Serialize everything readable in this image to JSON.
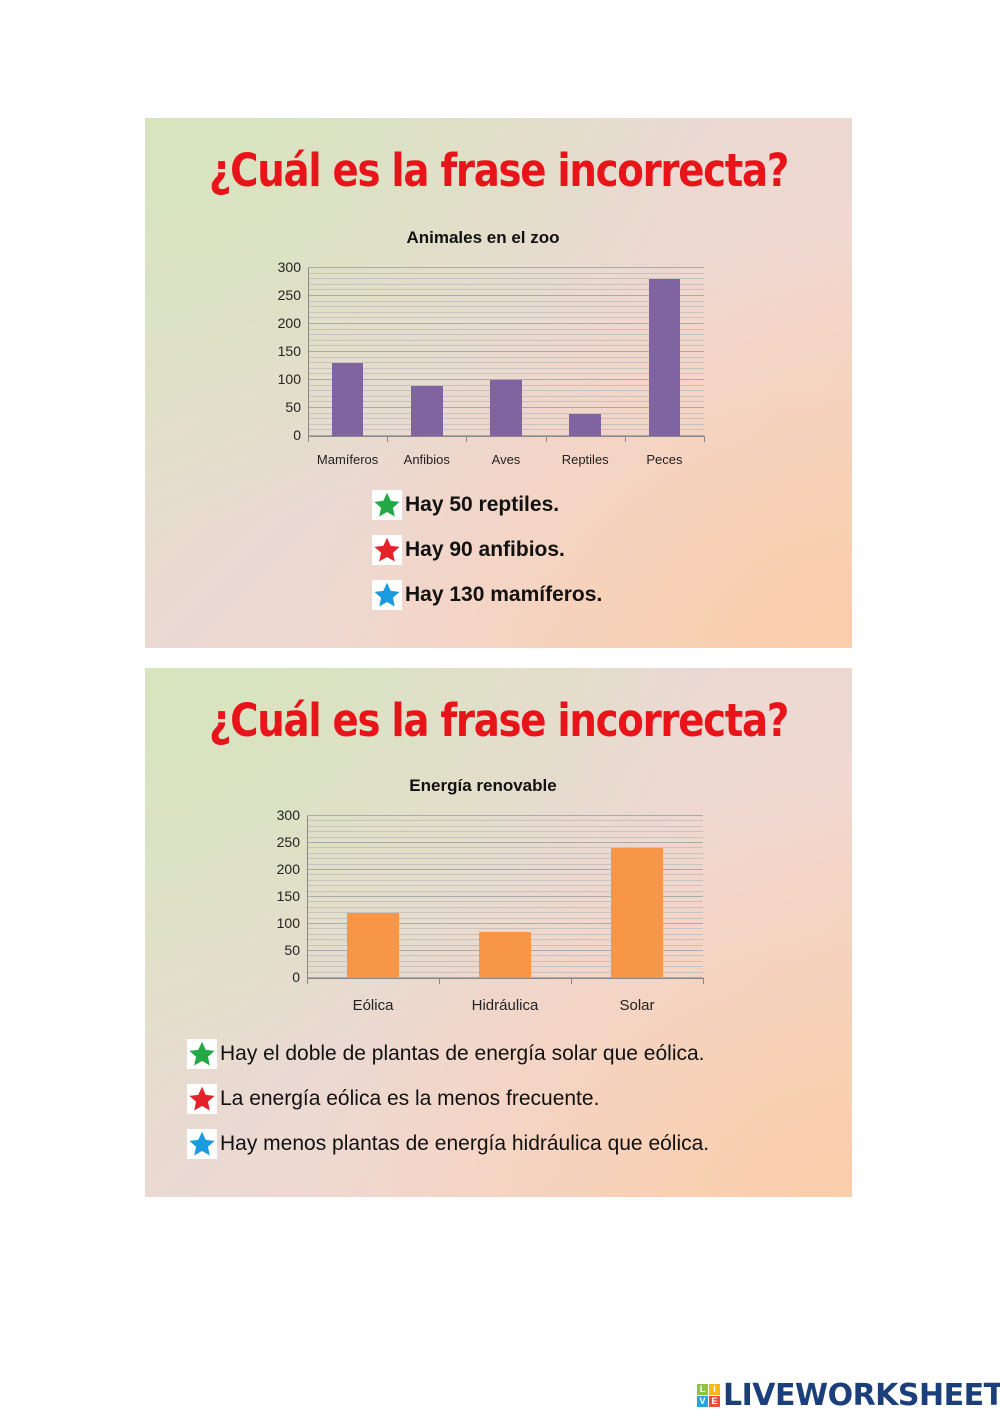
{
  "slides": [
    {
      "question": "¿Cuál es la frase incorrecta?",
      "options": [
        {
          "star_color": "#22a844",
          "text": "Hay 50 reptiles."
        },
        {
          "star_color": "#e5212a",
          "text": "Hay 90 anfibios."
        },
        {
          "star_color": "#1a9be0",
          "text": "Hay 130 mamíferos."
        }
      ]
    },
    {
      "question": "¿Cuál es la frase incorrecta?",
      "options": [
        {
          "star_color": "#22a844",
          "text": "Hay el doble de plantas de energía solar que eólica."
        },
        {
          "star_color": "#e5212a",
          "text": "La energía eólica es la menos frecuente."
        },
        {
          "star_color": "#1a9be0",
          "text": "Hay menos plantas de energía hidráulica que eólica."
        }
      ]
    }
  ],
  "chart_data": [
    {
      "type": "bar",
      "title": "Animales en el zoo",
      "categories": [
        "Mamíferos",
        "Anfibios",
        "Aves",
        "Reptiles",
        "Peces"
      ],
      "values": [
        130,
        90,
        100,
        40,
        280
      ],
      "yticks": [
        "300",
        "250",
        "200",
        "150",
        "100",
        "50",
        "0"
      ],
      "xlabel": "",
      "ylabel": "",
      "ylim": [
        0,
        300
      ],
      "grid": true,
      "bar_color": "#8064a2"
    },
    {
      "type": "bar",
      "title": "Energía renovable",
      "categories": [
        "Eólica",
        "Hidráulica",
        "Solar"
      ],
      "values": [
        120,
        85,
        240
      ],
      "yticks": [
        "300",
        "250",
        "200",
        "150",
        "100",
        "50",
        "0"
      ],
      "xlabel": "",
      "ylabel": "",
      "ylim": [
        0,
        300
      ],
      "grid": true,
      "bar_color": "#f79646"
    }
  ],
  "footer": {
    "logo_letters": [
      "L",
      "I",
      "V",
      "E"
    ],
    "logo_text": "LIVEWORKSHEETS"
  }
}
